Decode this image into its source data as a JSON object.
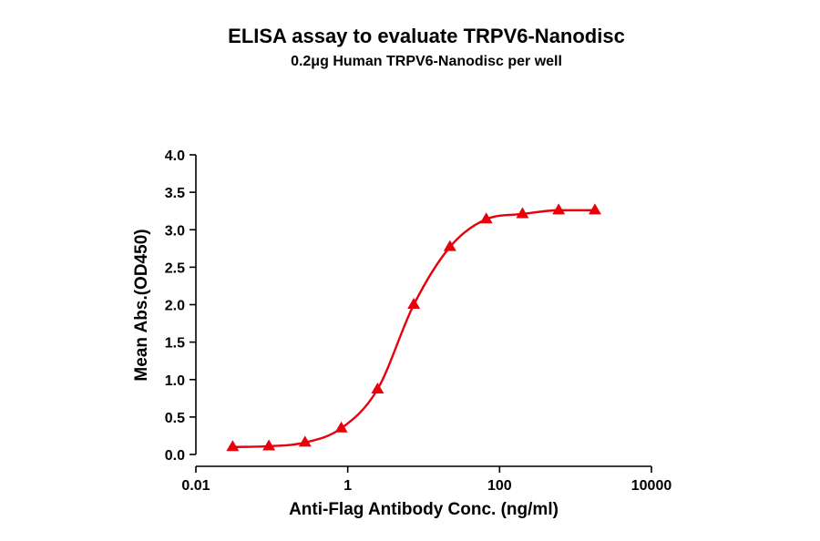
{
  "chart_data": {
    "type": "scatter",
    "title": "ELISA assay to evaluate TRPV6-Nanodisc",
    "subtitle": "0.2μg Human TRPV6-Nanodisc per well",
    "xlabel": "Anti-Flag Antibody Conc. (ng/ml)",
    "ylabel": "Mean Abs.(OD450)",
    "x_scale": "log",
    "xlim": [
      0.01,
      10000
    ],
    "ylim": [
      0,
      4
    ],
    "x_ticks": [
      0.01,
      1,
      100,
      10000
    ],
    "x_tick_labels": [
      "0.01",
      "1",
      "100",
      "10000"
    ],
    "y_ticks": [
      0,
      0.5,
      1,
      1.5,
      2,
      2.5,
      3,
      3.5,
      4
    ],
    "y_tick_labels": [
      "0.0",
      "0.5",
      "1.0",
      "1.5",
      "2.0",
      "2.5",
      "3.0",
      "3.5",
      "4.0"
    ],
    "grid": false,
    "marker": "triangle",
    "color": "#e8000b",
    "series": [
      {
        "x": [
          0.0305,
          0.0915,
          0.274,
          0.823,
          2.47,
          7.41,
          22.2,
          66.7,
          200,
          600,
          1800
        ],
        "y": [
          0.1,
          0.11,
          0.16,
          0.35,
          0.87,
          2.0,
          2.77,
          3.14,
          3.21,
          3.26,
          3.26
        ]
      }
    ]
  }
}
